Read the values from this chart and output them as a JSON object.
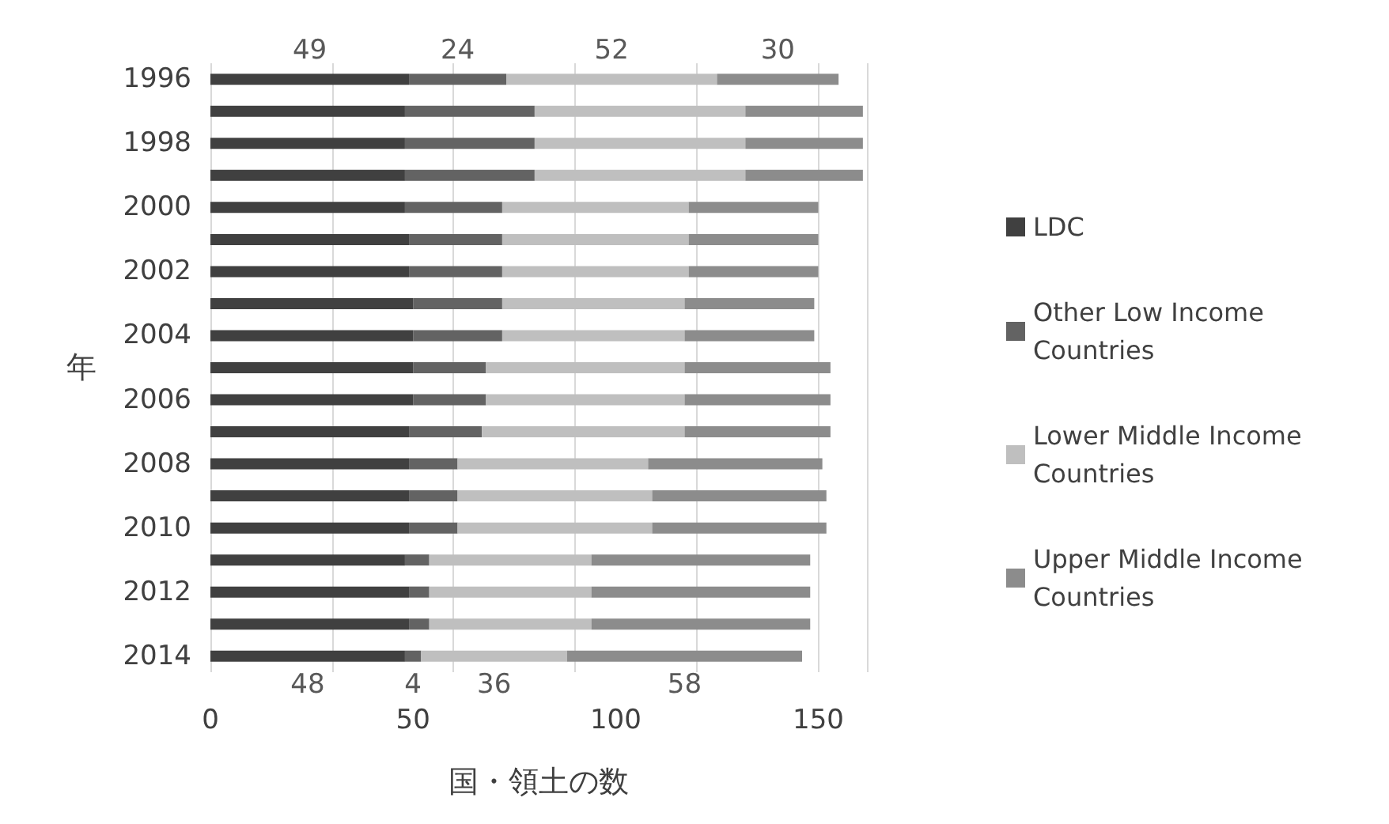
{
  "chart_data": {
    "type": "bar",
    "orientation": "horizontal",
    "stacked": true,
    "categories": [
      "1996",
      null,
      "1998",
      null,
      "2000",
      null,
      "2002",
      null,
      "2004",
      null,
      "2006",
      null,
      "2008",
      null,
      "2010",
      null,
      "2012",
      null,
      "2014"
    ],
    "series": [
      {
        "name": "LDC",
        "color": "#404040",
        "values": [
          49,
          48,
          48,
          48,
          48,
          49,
          49,
          50,
          50,
          50,
          50,
          49,
          49,
          49,
          49,
          48,
          49,
          49,
          48
        ],
        "value_labels": [
          "49",
          null,
          null,
          null,
          null,
          null,
          null,
          null,
          null,
          null,
          null,
          null,
          null,
          null,
          null,
          null,
          null,
          null,
          "48"
        ]
      },
      {
        "name": "Other Low Income Countries",
        "color": "#636363",
        "values": [
          24,
          32,
          32,
          32,
          24,
          23,
          23,
          22,
          22,
          18,
          18,
          18,
          12,
          12,
          12,
          6,
          5,
          5,
          4
        ],
        "value_labels": [
          "24",
          null,
          null,
          null,
          null,
          null,
          null,
          null,
          null,
          null,
          null,
          null,
          null,
          null,
          null,
          null,
          null,
          null,
          "4"
        ]
      },
      {
        "name": "Lower Middle Income Countries",
        "color": "#bfbfbf",
        "values": [
          52,
          52,
          52,
          52,
          46,
          46,
          46,
          45,
          45,
          49,
          49,
          50,
          47,
          48,
          48,
          40,
          40,
          40,
          36
        ],
        "value_labels": [
          "52",
          null,
          null,
          null,
          null,
          null,
          null,
          null,
          null,
          null,
          null,
          null,
          null,
          null,
          null,
          null,
          null,
          null,
          "36"
        ]
      },
      {
        "name": "Upper Middle Income Countries",
        "color": "#8c8c8c",
        "values": [
          30,
          29,
          29,
          29,
          32,
          32,
          32,
          32,
          32,
          36,
          36,
          36,
          43,
          43,
          43,
          54,
          54,
          54,
          58
        ],
        "value_labels": [
          "30",
          null,
          null,
          null,
          null,
          null,
          null,
          null,
          null,
          null,
          null,
          null,
          null,
          null,
          null,
          null,
          null,
          null,
          "58"
        ]
      }
    ],
    "xlim": [
      0,
      162
    ],
    "xticks": [
      0,
      50,
      100,
      150
    ],
    "xlabel": "国・領土の数",
    "ylabel": "年",
    "grid": "x",
    "legend": "right"
  }
}
